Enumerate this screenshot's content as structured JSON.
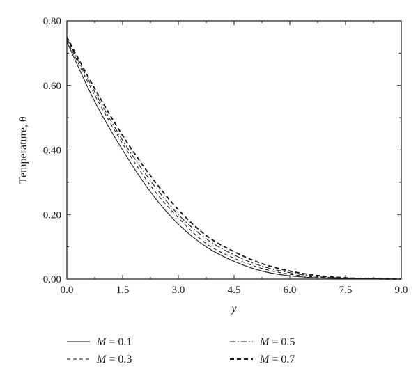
{
  "chart_data": {
    "type": "line",
    "xlabel": "y",
    "ylabel": "Temperature, θ",
    "xlim": [
      0,
      9
    ],
    "ylim": [
      0,
      0.8
    ],
    "x_ticks": [
      "0.0",
      "1.5",
      "3.0",
      "4.5",
      "6.0",
      "7.5",
      "9.0"
    ],
    "y_ticks": [
      "0.00",
      "0.20",
      "0.40",
      "0.60",
      "0.80"
    ],
    "grid": false,
    "legend_position": "bottom",
    "x": [
      0,
      0.75,
      1.5,
      2.25,
      3.0,
      3.75,
      4.5,
      5.25,
      6.0,
      6.75,
      7.5,
      8.25,
      9.0
    ],
    "series": [
      {
        "name": "M = 0.1",
        "param": "M",
        "value": "0.1",
        "dash": "solid",
        "values": [
          0.735,
          0.55,
          0.4,
          0.27,
          0.17,
          0.1,
          0.055,
          0.025,
          0.01,
          0.004,
          0.002,
          0.001,
          0.0
        ]
      },
      {
        "name": "M = 0.3",
        "param": "M",
        "value": "0.3",
        "dash": "dashed",
        "values": [
          0.74,
          0.57,
          0.42,
          0.29,
          0.19,
          0.11,
          0.065,
          0.033,
          0.015,
          0.006,
          0.003,
          0.001,
          0.0
        ]
      },
      {
        "name": "M = 0.5",
        "param": "M",
        "value": "0.5",
        "dash": "dashdot",
        "values": [
          0.745,
          0.58,
          0.43,
          0.305,
          0.2,
          0.125,
          0.075,
          0.04,
          0.02,
          0.008,
          0.003,
          0.001,
          0.0
        ]
      },
      {
        "name": "M = 0.7",
        "param": "M",
        "value": "0.7",
        "dash": "bold-dashed",
        "values": [
          0.75,
          0.59,
          0.445,
          0.32,
          0.215,
          0.135,
          0.085,
          0.048,
          0.025,
          0.011,
          0.004,
          0.001,
          0.0
        ]
      }
    ]
  }
}
